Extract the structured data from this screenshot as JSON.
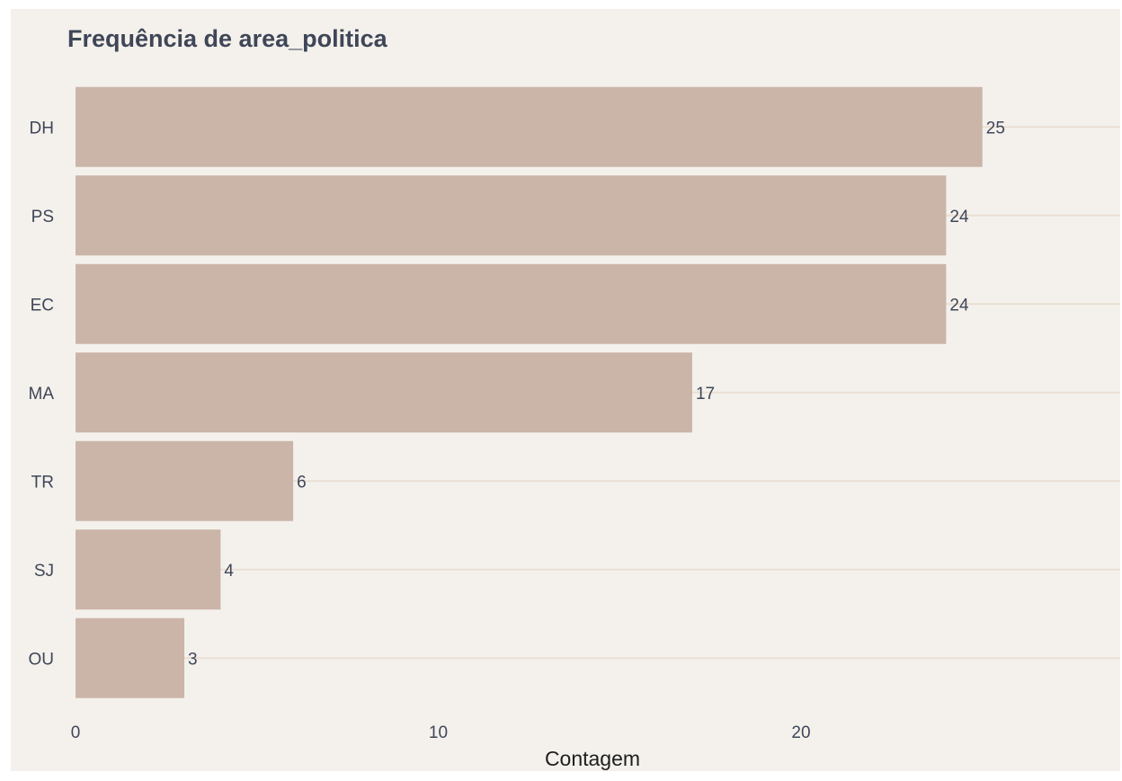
{
  "chart_data": {
    "type": "bar",
    "orientation": "horizontal",
    "title": "Frequência de area_politica",
    "xlabel": "Contagem",
    "ylabel": "",
    "categories": [
      "DH",
      "PS",
      "EC",
      "MA",
      "TR",
      "SJ",
      "OU"
    ],
    "values": [
      25,
      24,
      24,
      17,
      6,
      4,
      3
    ],
    "value_labels": [
      "25",
      "24",
      "24",
      "17",
      "6",
      "4",
      "3"
    ],
    "x_ticks": [
      0,
      10,
      20
    ],
    "x_tick_labels": [
      "0",
      "10",
      "20"
    ],
    "xlim": [
      0,
      28.8
    ],
    "grid": {
      "vertical": false,
      "horizontal": true
    },
    "legend": "none",
    "colors": {
      "background": "#f4f1ec",
      "bar": "#cbb5a8",
      "grid": "#e9dfd3",
      "text": "#3f4658",
      "axis_title": "#1e1e1e"
    }
  }
}
